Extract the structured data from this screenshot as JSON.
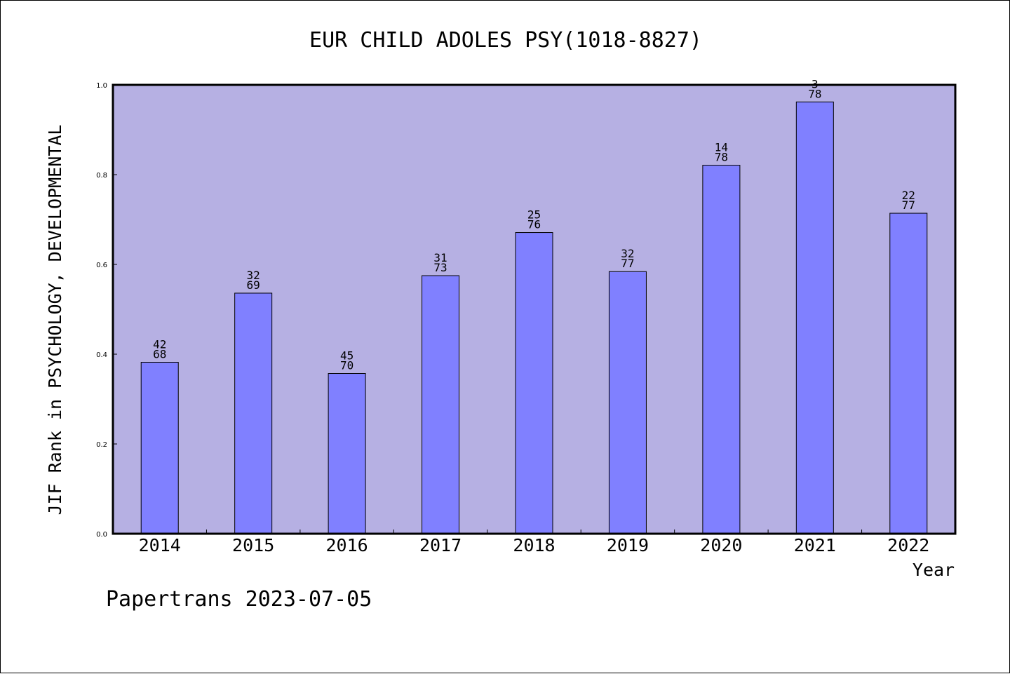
{
  "chart_data": {
    "type": "bar",
    "title": "EUR CHILD ADOLES PSY(1018-8827)",
    "xlabel": "Year",
    "ylabel": "JIF Rank in PSYCHOLOGY, DEVELOPMENTAL",
    "ylim": [
      0,
      1.0
    ],
    "yticks": [
      "0.0",
      "0.2",
      "0.4",
      "0.6",
      "0.8",
      "1.0"
    ],
    "grid": false,
    "categories": [
      "2014",
      "2015",
      "2016",
      "2017",
      "2018",
      "2019",
      "2020",
      "2021",
      "2022"
    ],
    "values": [
      0.382,
      0.536,
      0.357,
      0.575,
      0.671,
      0.584,
      0.821,
      0.962,
      0.714
    ],
    "rank": [
      "42",
      "32",
      "45",
      "31",
      "25",
      "32",
      "14",
      "3",
      "22"
    ],
    "total": [
      "68",
      "69",
      "70",
      "73",
      "76",
      "77",
      "78",
      "78",
      "77"
    ],
    "colors": {
      "plot_background": "#b6b0e3",
      "bar_fill": "#8080ff",
      "bar_edge": "#000000"
    }
  },
  "footer": {
    "text": "Papertrans 2023-07-05"
  }
}
